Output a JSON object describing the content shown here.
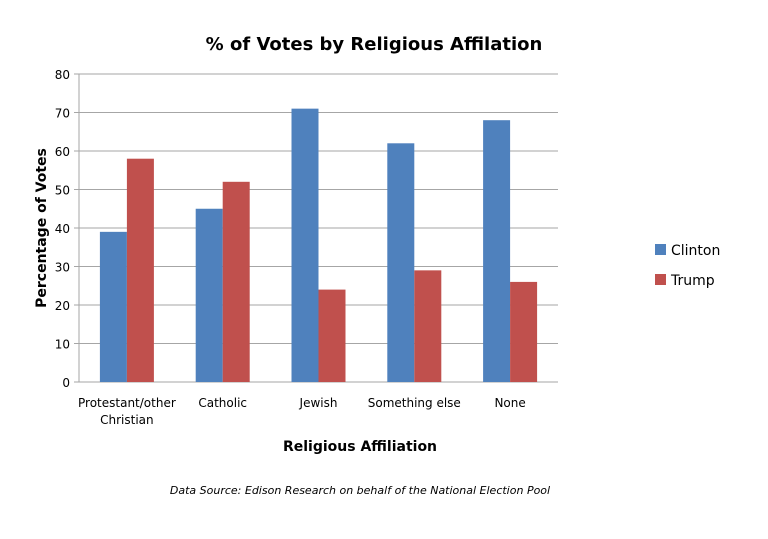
{
  "chart_data": {
    "type": "bar",
    "title": "% of Votes by Religious Affilation",
    "xlabel": "Religious Affiliation",
    "ylabel": "Percentage of Votes",
    "categories": [
      [
        "Protestant/other",
        "Christian"
      ],
      [
        "Catholic"
      ],
      [
        "Jewish"
      ],
      [
        "Something else"
      ],
      [
        "None"
      ]
    ],
    "series": [
      {
        "name": "Clinton",
        "color": "#4f81bd",
        "values": [
          39,
          45,
          71,
          62,
          68
        ]
      },
      {
        "name": "Trump",
        "color": "#c0504d",
        "values": [
          58,
          52,
          24,
          29,
          26
        ]
      }
    ],
    "ylim": [
      0,
      80
    ],
    "yticks": [
      0,
      10,
      20,
      30,
      40,
      50,
      60,
      70,
      80
    ],
    "grid": true,
    "legend_position": "right",
    "source_note": "Data Source: Edison Research on behalf of the National Election Pool"
  }
}
